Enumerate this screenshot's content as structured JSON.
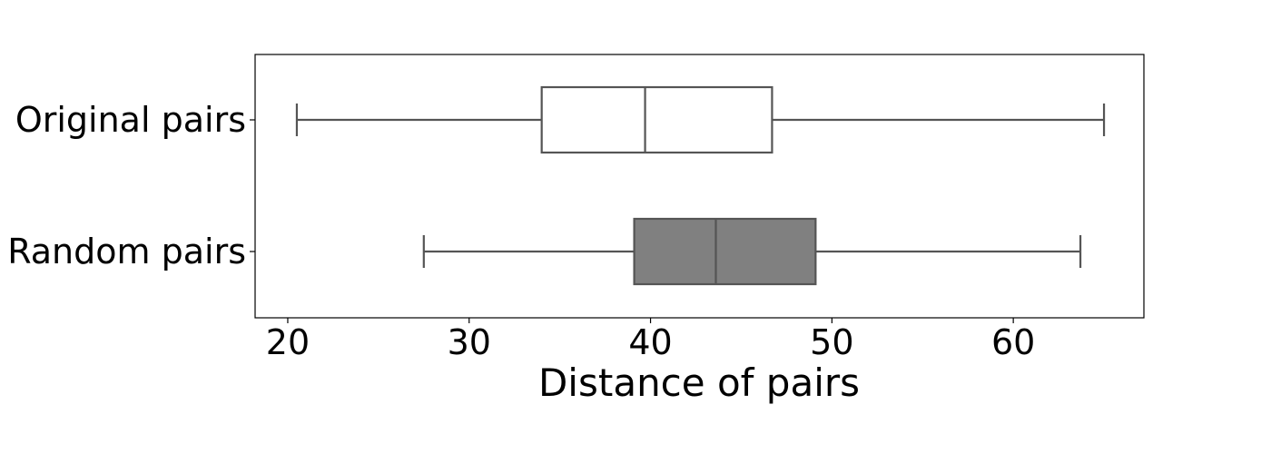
{
  "chart_data": {
    "type": "boxplot",
    "orientation": "horizontal",
    "title": "",
    "xlabel": "Distance of pairs",
    "ylabel": "",
    "xlim": [
      18.2,
      67.2
    ],
    "xticks": [
      20,
      30,
      40,
      50,
      60
    ],
    "xtick_labels": [
      "20",
      "30",
      "40",
      "50",
      "60"
    ],
    "grid": false,
    "series": [
      {
        "name": "Original pairs",
        "whisker_low": 20.5,
        "q1": 34.0,
        "median": 39.7,
        "q3": 46.7,
        "whisker_high": 65.0,
        "fill": "#ffffff"
      },
      {
        "name": "Random pairs",
        "whisker_low": 27.5,
        "q1": 39.1,
        "median": 43.6,
        "q3": 49.1,
        "whisker_high": 63.7,
        "fill": "#808080"
      }
    ],
    "colors": {
      "line": "#555555",
      "frame": "#000000"
    }
  }
}
